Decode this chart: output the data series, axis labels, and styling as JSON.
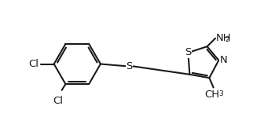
{
  "background": "#ffffff",
  "line_color": "#1a1a1a",
  "line_width": 1.5,
  "font_size_atom": 9.5,
  "font_size_sub": 6.5,
  "text_color": "#1a1a1a",
  "xlim": [
    0.0,
    10.0
  ],
  "ylim": [
    0.5,
    4.5
  ]
}
